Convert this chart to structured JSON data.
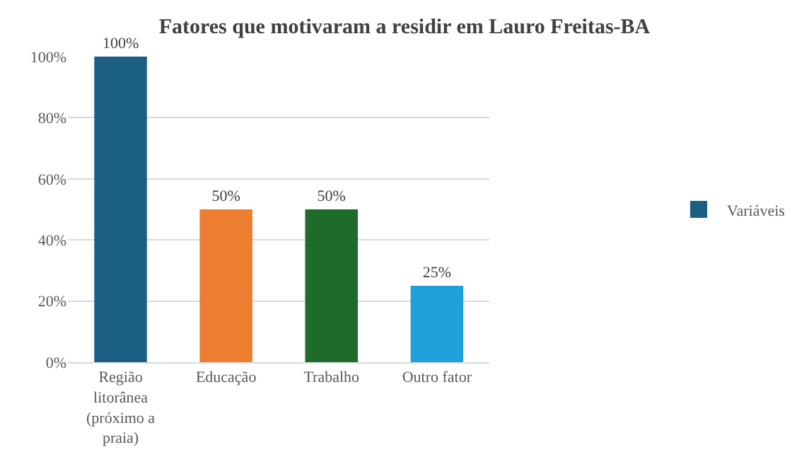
{
  "chart_data": {
    "type": "bar",
    "title": "Fatores que motivaram a residir em Lauro Freitas-BA",
    "categories": [
      "Região litorânea (próximo a praia)",
      "Educação",
      "Trabalho",
      "Outro fator"
    ],
    "series": [
      {
        "name": "Variáveis",
        "colors": [
          "#1b5f82",
          "#ed7d31",
          "#1e6b2a",
          "#1fa0d9"
        ],
        "values": [
          100,
          50,
          50,
          25
        ],
        "value_labels": [
          "100%",
          "50%",
          "50%",
          "25%"
        ]
      }
    ],
    "ylim": [
      0,
      100
    ],
    "yticks": [
      {
        "value": 0,
        "label": "0%"
      },
      {
        "value": 20,
        "label": "20%"
      },
      {
        "value": 40,
        "label": "40%"
      },
      {
        "value": 60,
        "label": "60%"
      },
      {
        "value": 80,
        "label": "80%"
      },
      {
        "value": 100,
        "label": "100%"
      }
    ],
    "grid": "y",
    "legend": "right"
  }
}
